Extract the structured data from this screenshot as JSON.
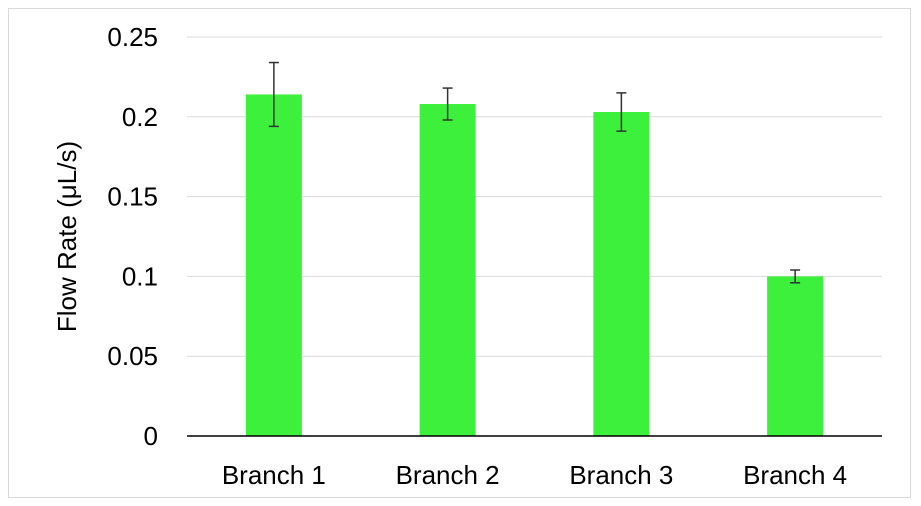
{
  "chart_data": {
    "type": "bar",
    "title": "",
    "xlabel": "",
    "ylabel": "Flow Rate (μL/s)",
    "categories": [
      "Branch 1",
      "Branch 2",
      "Branch 3",
      "Branch 4"
    ],
    "values": [
      0.214,
      0.208,
      0.203,
      0.1
    ],
    "error": [
      0.02,
      0.01,
      0.012,
      0.004
    ],
    "ylim": [
      0,
      0.25
    ],
    "yticks": [
      "0",
      "0.05",
      "0.1",
      "0.15",
      "0.2",
      "0.25"
    ],
    "grid": true,
    "legend": "none",
    "bar_color": "#3cf03c"
  }
}
